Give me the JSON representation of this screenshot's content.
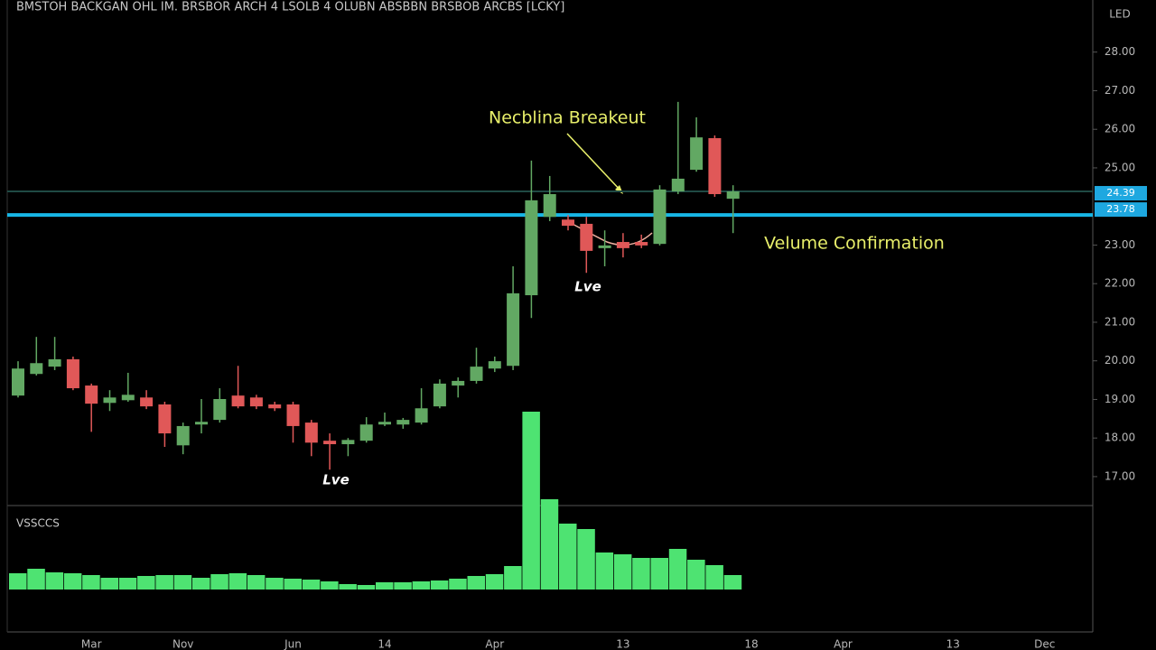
{
  "chart_data": {
    "type": "candlestick",
    "title": "BMSTOH BACKGAN OHL IM. BRSBOR ARCH 4 LSOLB 4 OLUBN ABSBBN BRSBOB ARCBS [LCKY]",
    "axis_unit": "LED",
    "volume_label": "VSSCCS",
    "categories": [
      null,
      null,
      null,
      null,
      "Mar",
      null,
      null,
      null,
      null,
      "Nov",
      null,
      null,
      null,
      null,
      null,
      "Jun",
      null,
      null,
      null,
      null,
      "14",
      null,
      null,
      null,
      null,
      null,
      "Apr",
      null,
      null,
      null,
      null,
      null,
      null,
      "13",
      null,
      null,
      null,
      null,
      null,
      null,
      "18",
      null,
      null,
      null,
      null,
      "Apr",
      null,
      null,
      null,
      null,
      null,
      "13",
      null,
      null,
      null,
      null,
      "Dec",
      null
    ],
    "open": [
      19.1,
      19.66,
      19.85,
      20.04,
      19.36,
      18.91,
      18.98,
      19.05,
      18.87,
      17.81,
      18.35,
      18.47,
      19.1,
      19.05,
      18.87,
      18.87,
      18.4,
      17.93,
      17.84,
      17.93,
      18.35,
      18.35,
      18.4,
      18.82,
      19.36,
      19.48,
      19.8,
      19.87,
      21.7,
      23.73,
      23.66,
      23.55,
      22.92,
      23.08,
      23.08,
      23.03,
      24.39,
      24.95,
      25.77,
      24.2,
      null,
      null,
      null,
      null,
      null,
      null,
      null,
      null,
      null,
      null,
      null,
      null,
      null,
      null,
      null,
      null,
      null,
      null
    ],
    "high": [
      19.99,
      20.62,
      20.62,
      20.11,
      19.41,
      19.24,
      19.69,
      19.24,
      18.94,
      18.4,
      19.01,
      19.29,
      19.87,
      19.12,
      18.94,
      18.94,
      18.47,
      18.12,
      18.0,
      18.54,
      18.66,
      18.52,
      19.29,
      19.52,
      19.57,
      20.34,
      20.11,
      22.45,
      25.19,
      24.79,
      23.78,
      23.73,
      23.38,
      23.31,
      23.27,
      24.55,
      26.71,
      26.31,
      25.84,
      24.55,
      null,
      null,
      null,
      null,
      null,
      null,
      null,
      null,
      null,
      null,
      null,
      null,
      null,
      null,
      null,
      null,
      null,
      null
    ],
    "low": [
      19.05,
      19.62,
      19.76,
      19.24,
      18.16,
      18.7,
      18.94,
      18.75,
      17.77,
      17.58,
      18.12,
      18.4,
      18.77,
      18.75,
      18.7,
      17.88,
      17.53,
      17.18,
      17.53,
      17.88,
      18.31,
      18.24,
      18.35,
      18.77,
      19.05,
      19.41,
      19.71,
      19.76,
      21.11,
      23.62,
      23.38,
      22.28,
      22.45,
      22.68,
      22.92,
      22.99,
      24.32,
      24.9,
      24.25,
      23.31,
      null,
      null,
      null,
      null,
      null,
      null,
      null,
      null,
      null,
      null,
      null,
      null,
      null,
      null,
      null,
      null,
      null,
      null
    ],
    "close": [
      19.8,
      19.94,
      20.04,
      19.29,
      18.89,
      19.05,
      19.12,
      18.82,
      18.12,
      18.31,
      18.42,
      19.01,
      18.82,
      18.82,
      18.77,
      18.31,
      17.88,
      17.84,
      17.95,
      18.35,
      18.42,
      18.47,
      18.77,
      19.41,
      19.48,
      19.85,
      19.99,
      21.75,
      24.16,
      24.32,
      23.5,
      22.85,
      22.99,
      22.92,
      22.99,
      24.44,
      24.72,
      25.79,
      24.32,
      24.39,
      null,
      null,
      null,
      null,
      null,
      null,
      null,
      null,
      null,
      null,
      null,
      null,
      null,
      null,
      null,
      null,
      null,
      null
    ],
    "volume": [
      1.8,
      2.3,
      1.9,
      1.8,
      1.6,
      1.3,
      1.3,
      1.5,
      1.6,
      1.6,
      1.3,
      1.7,
      1.8,
      1.6,
      1.3,
      1.2,
      1.1,
      0.9,
      0.6,
      0.5,
      0.8,
      0.8,
      0.9,
      1.0,
      1.2,
      1.5,
      1.7,
      2.6,
      19.7,
      10.0,
      7.3,
      6.7,
      4.1,
      3.9,
      3.5,
      3.5,
      4.5,
      3.3,
      2.7,
      1.6,
      null,
      null,
      null,
      null,
      null,
      null,
      null,
      null,
      null,
      null,
      null,
      null,
      null,
      null,
      null,
      null,
      null,
      null
    ],
    "up_color": "#62a863",
    "down_color": "#e05858",
    "volume_color": "#4ee372",
    "ylim": [
      16.25,
      29.35
    ],
    "yticks": [
      {
        "value": 17,
        "label": "17.00"
      },
      {
        "value": 18,
        "label": "18.00"
      },
      {
        "value": 19,
        "label": "19.00"
      },
      {
        "value": 20,
        "label": "20.00"
      },
      {
        "value": 21,
        "label": "21.00"
      },
      {
        "value": 22,
        "label": "22.00"
      },
      {
        "value": 23,
        "label": "23.00"
      },
      {
        "value": 25,
        "label": "25.00"
      },
      {
        "value": 26,
        "label": "26.00"
      },
      {
        "value": 27,
        "label": "27.00"
      },
      {
        "value": 28,
        "label": "28.00"
      }
    ],
    "volume_ylim": [
      0,
      20
    ],
    "neckline": {
      "value": 24.39,
      "label": "24.39",
      "color": "#1f4a44"
    },
    "price_line": {
      "value": 23.78,
      "label": "23.78",
      "color": "#17b6e6"
    },
    "annotations": [
      "Necblina Breakeut",
      "Velume Confirmation",
      "Lve",
      "Lve"
    ]
  }
}
